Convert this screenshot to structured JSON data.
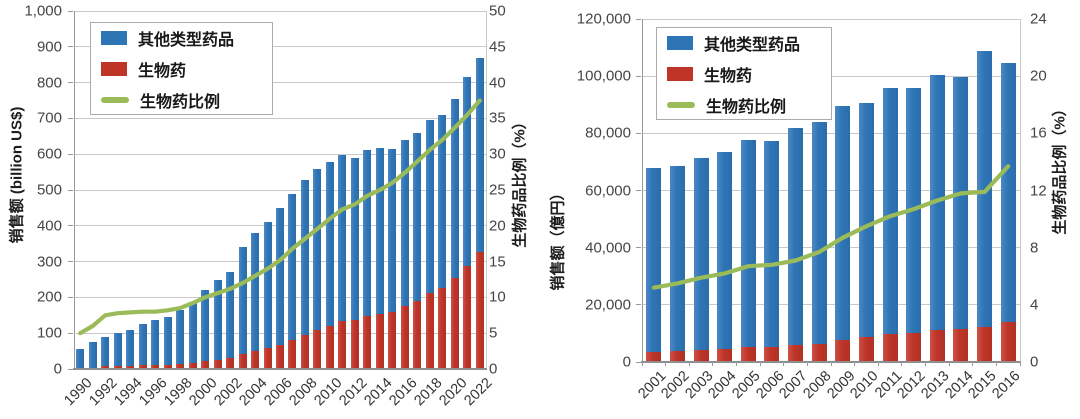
{
  "colors": {
    "other_bar": "#2E75B6",
    "bio_bar": "#BE3528",
    "ratio_line": "#9BBB59",
    "gridline": "#c9c9c9",
    "axis_line": "#8f8f8f",
    "tick_text": "#454545",
    "label_text": "#1d1d1d"
  },
  "chart_data": [
    {
      "id": "us",
      "type": "bar",
      "subtype": "stacked-bar-with-line",
      "grid": true,
      "legend_position": "top-left",
      "categories": [
        "1990",
        "1991",
        "1992",
        "1993",
        "1994",
        "1995",
        "1996",
        "1997",
        "1998",
        "1999",
        "2000",
        "2001",
        "2002",
        "2003",
        "2004",
        "2005",
        "2006",
        "2007",
        "2008",
        "2009",
        "2010",
        "2011",
        "2012",
        "2013",
        "2014",
        "2015",
        "2016",
        "2017",
        "2018",
        "2019",
        "2020",
        "2021",
        "2022"
      ],
      "series": [
        {
          "name": "其他类型药品",
          "type": "bar",
          "axis": "left",
          "color": "#2E75B6",
          "role": "other",
          "note": "stacked above 生物药; value = total - 生物药"
        },
        {
          "name": "生物药",
          "type": "bar",
          "axis": "left",
          "color": "#BE3528",
          "role": "bio",
          "values": [
            3,
            4,
            7,
            8,
            9,
            10,
            11,
            12,
            14,
            17,
            22,
            26,
            30,
            41,
            49,
            58,
            68,
            82,
            96,
            110,
            121,
            133,
            136,
            148,
            154,
            160,
            175,
            191,
            213,
            227,
            254,
            289,
            326
          ]
        },
        {
          "name": "生物药比例",
          "type": "line",
          "axis": "right",
          "color": "#9BBB59",
          "role": "ratio",
          "values": [
            5.0,
            6.0,
            7.5,
            7.8,
            7.9,
            8.0,
            8.0,
            8.2,
            8.5,
            9.2,
            10.0,
            10.6,
            11.2,
            12.0,
            13.0,
            14.0,
            15.2,
            16.8,
            18.2,
            19.6,
            21.0,
            22.3,
            23.0,
            24.2,
            25.0,
            26.0,
            27.4,
            29.0,
            30.6,
            32.0,
            33.7,
            35.5,
            37.5
          ]
        }
      ],
      "stack_totals": [
        55,
        75,
        88,
        100,
        108,
        127,
        136,
        146,
        165,
        188,
        220,
        248,
        272,
        340,
        380,
        412,
        450,
        490,
        528,
        560,
        578,
        598,
        590,
        612,
        616,
        615,
        640,
        658,
        695,
        710,
        755,
        815,
        870
      ],
      "axes": {
        "left": {
          "label": "销售额 (billion US$)",
          "min": 0,
          "max": 1000,
          "step": 100
        },
        "right": {
          "label": "生物药品比例（%）",
          "min": 0,
          "max": 50,
          "step": 5
        },
        "x": {
          "label_every": 2,
          "minor_ticks": false
        }
      }
    },
    {
      "id": "japan",
      "type": "bar",
      "subtype": "stacked-bar-with-line",
      "grid": true,
      "legend_position": "top-left",
      "categories": [
        "2001",
        "2002",
        "2003",
        "2004",
        "2005",
        "2006",
        "2007",
        "2008",
        "2009",
        "2010",
        "2011",
        "2012",
        "2013",
        "2014",
        "2015",
        "2016"
      ],
      "series": [
        {
          "name": "其他类型药品",
          "type": "bar",
          "axis": "left",
          "color": "#2E75B6",
          "role": "other",
          "note": "stacked above 生物药; value = total - 生物药"
        },
        {
          "name": "生物药",
          "type": "bar",
          "axis": "left",
          "color": "#BE3528",
          "role": "bio",
          "values": [
            3500,
            3800,
            4200,
            4600,
            5200,
            5200,
            5800,
            6400,
            7800,
            8600,
            9800,
            10200,
            11300,
            11700,
            12400,
            14000
          ]
        },
        {
          "name": "生物药比例",
          "type": "line",
          "axis": "right",
          "color": "#9BBB59",
          "role": "ratio",
          "values": [
            5.2,
            5.5,
            5.9,
            6.2,
            6.7,
            6.8,
            7.1,
            7.7,
            8.7,
            9.5,
            10.2,
            10.7,
            11.3,
            11.8,
            11.9,
            13.7
          ]
        }
      ],
      "stack_totals": [
        68000,
        68600,
        71200,
        73500,
        77700,
        77300,
        81800,
        84100,
        89600,
        90500,
        96000,
        95700,
        100400,
        99600,
        108800,
        104500
      ],
      "axes": {
        "left": {
          "label": "销售额（億円）",
          "min": 0,
          "max": 120000,
          "step": 20000
        },
        "right": {
          "label": "生物药品比例（%）",
          "min": 0,
          "max": 24,
          "step": 4
        },
        "x": {
          "label_every": 1,
          "minor_ticks": true
        }
      }
    }
  ]
}
